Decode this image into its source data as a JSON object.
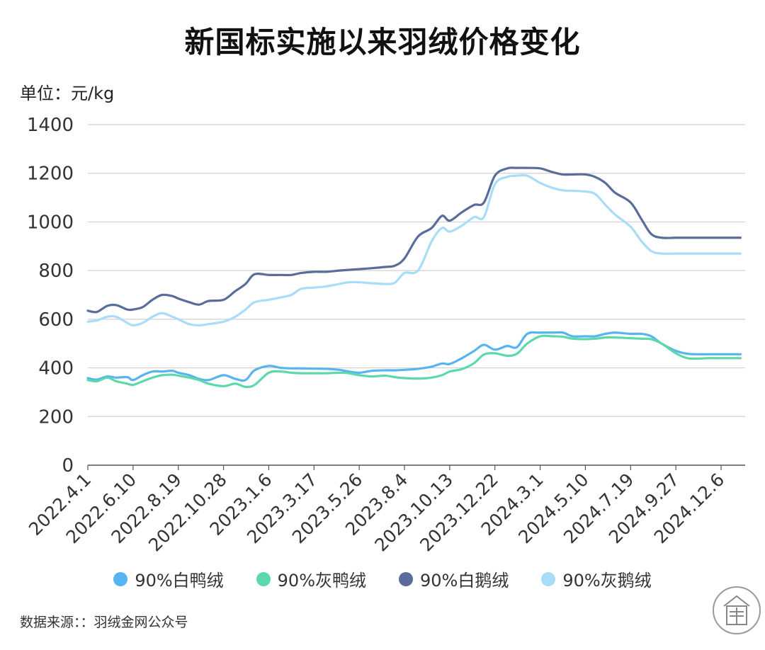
{
  "title": "新国标实施以来羽绒价格变化",
  "unit": "单位：元/kg",
  "source": "数据来源：：羽绒金网公众号",
  "chart_data": {
    "type": "line",
    "x_tick_labels": [
      "2022.4.1",
      "2022.6.10",
      "2022.8.19",
      "2022.10.28",
      "2023.1.6",
      "2023.3.17",
      "2023.5.26",
      "2023.8.4",
      "2023.10.13",
      "2023.12.22",
      "2024.3.1",
      "2024.5.10",
      "2024.7.19",
      "2024.9.27",
      "2024.12.6"
    ],
    "ylim": [
      0,
      1400
    ],
    "y_ticks": [
      0,
      200,
      400,
      600,
      800,
      1000,
      1200,
      1400
    ],
    "x": [
      "2022.4.1",
      "2022.4.15",
      "2022.5.1",
      "2022.5.15",
      "2022.6.1",
      "2022.6.10",
      "2022.6.25",
      "2022.7.10",
      "2022.7.25",
      "2022.8.10",
      "2022.8.19",
      "2022.9.5",
      "2022.9.20",
      "2022.10.5",
      "2022.10.28",
      "2022.11.15",
      "2022.12.1",
      "2022.12.15",
      "2023.1.6",
      "2023.1.25",
      "2023.2.10",
      "2023.2.25",
      "2023.3.17",
      "2023.4.5",
      "2023.4.25",
      "2023.5.10",
      "2023.5.26",
      "2023.6.15",
      "2023.7.5",
      "2023.7.20",
      "2023.8.4",
      "2023.8.25",
      "2023.9.15",
      "2023.10.1",
      "2023.10.13",
      "2023.11.1",
      "2023.11.20",
      "2023.12.5",
      "2023.12.22",
      "2024.1.10",
      "2024.1.25",
      "2024.2.10",
      "2024.3.1",
      "2024.3.20",
      "2024.4.5",
      "2024.4.20",
      "2024.5.10",
      "2024.5.25",
      "2024.6.10",
      "2024.6.25",
      "2024.7.19",
      "2024.8.5",
      "2024.8.20",
      "2024.9.5",
      "2024.9.27",
      "2024.10.15",
      "2024.11.1",
      "2024.11.15",
      "2024.12.6",
      "2024.12.20",
      "2025.1.5"
    ],
    "series": [
      {
        "name": "90%白鸭绒",
        "color": "#58b4f0",
        "values": [
          358,
          352,
          365,
          360,
          362,
          350,
          370,
          385,
          385,
          388,
          380,
          370,
          355,
          350,
          370,
          355,
          350,
          390,
          408,
          400,
          398,
          398,
          397,
          396,
          392,
          385,
          380,
          388,
          390,
          390,
          392,
          396,
          405,
          418,
          416,
          440,
          470,
          495,
          475,
          490,
          485,
          540,
          545,
          545,
          545,
          530,
          530,
          530,
          540,
          545,
          540,
          540,
          530,
          500,
          470,
          458,
          456,
          456,
          456,
          456,
          456
        ]
      },
      {
        "name": "90%灰鸭绒",
        "color": "#5dd8aa",
        "values": [
          350,
          345,
          360,
          345,
          335,
          330,
          345,
          360,
          370,
          372,
          368,
          360,
          350,
          335,
          325,
          335,
          322,
          330,
          380,
          385,
          380,
          378,
          378,
          378,
          380,
          378,
          370,
          365,
          368,
          362,
          358,
          356,
          360,
          370,
          385,
          395,
          420,
          455,
          460,
          450,
          458,
          500,
          530,
          530,
          528,
          520,
          518,
          520,
          525,
          525,
          522,
          520,
          518,
          500,
          460,
          440,
          438,
          440,
          440,
          440,
          440
        ]
      },
      {
        "name": "90%白鹅绒",
        "color": "#5a6d9a",
        "values": [
          635,
          630,
          655,
          658,
          640,
          640,
          650,
          680,
          700,
          695,
          685,
          670,
          660,
          675,
          680,
          715,
          745,
          785,
          782,
          782,
          782,
          790,
          795,
          795,
          800,
          803,
          806,
          810,
          815,
          820,
          850,
          940,
          975,
          1025,
          1005,
          1040,
          1070,
          1080,
          1190,
          1220,
          1222,
          1222,
          1220,
          1205,
          1195,
          1195,
          1195,
          1185,
          1160,
          1120,
          1080,
          1010,
          950,
          935,
          935,
          935,
          935,
          935,
          935,
          935,
          935
        ]
      },
      {
        "name": "90%灰鹅绒",
        "color": "#a8ddf7",
        "values": [
          590,
          595,
          610,
          610,
          585,
          575,
          585,
          610,
          625,
          610,
          600,
          580,
          575,
          580,
          590,
          610,
          640,
          670,
          680,
          690,
          700,
          725,
          730,
          735,
          745,
          752,
          752,
          748,
          745,
          750,
          790,
          800,
          920,
          975,
          960,
          985,
          1020,
          1020,
          1155,
          1185,
          1190,
          1190,
          1160,
          1140,
          1130,
          1128,
          1125,
          1115,
          1070,
          1030,
          980,
          920,
          880,
          870,
          870,
          870,
          870,
          870,
          870,
          870,
          870
        ]
      }
    ]
  }
}
